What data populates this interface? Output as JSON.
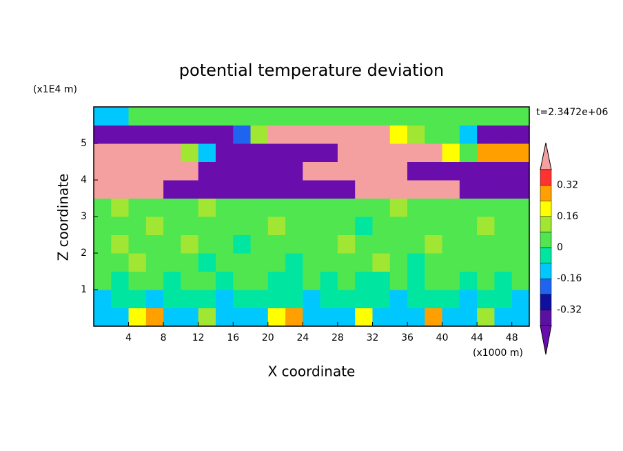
{
  "chart_data": {
    "type": "contour",
    "title": "potential temperature deviation",
    "x_label": "X coordinate",
    "y_label": "Z coordinate",
    "x_unit": "(x1000 m)",
    "y_unit": "(x1E4 m)",
    "annotation": "t=2.3472e+06",
    "xlim": [
      0,
      50
    ],
    "ylim": [
      0,
      6
    ],
    "xticks": [
      4,
      8,
      12,
      16,
      20,
      24,
      28,
      32,
      36,
      40,
      44,
      48
    ],
    "yticks": [
      1,
      2,
      3,
      4,
      5
    ],
    "x": [
      1,
      3,
      5,
      7,
      9,
      11,
      13,
      15,
      17,
      19,
      21,
      23,
      25,
      27,
      29,
      31,
      33,
      35,
      37,
      39,
      41,
      43,
      45,
      47,
      49
    ],
    "y": [
      0.25,
      0.75,
      1.25,
      1.75,
      2.25,
      2.75,
      3.25,
      3.75,
      4.25,
      4.75,
      5.25,
      5.75
    ],
    "z": [
      [
        -0.1,
        -0.1,
        0.2,
        0.3,
        -0.1,
        -0.1,
        0.1,
        -0.1,
        -0.1,
        -0.1,
        0.2,
        0.3,
        -0.1,
        -0.1,
        -0.1,
        0.2,
        -0.1,
        -0.1,
        -0.1,
        0.3,
        -0.1,
        -0.1,
        0.1,
        -0.1,
        -0.1
      ],
      [
        -0.1,
        -0.04,
        -0.04,
        -0.1,
        -0.04,
        -0.04,
        -0.04,
        -0.1,
        -0.04,
        -0.04,
        -0.04,
        -0.04,
        -0.1,
        -0.04,
        -0.04,
        -0.04,
        -0.04,
        -0.1,
        -0.04,
        -0.04,
        -0.04,
        -0.1,
        -0.04,
        -0.04,
        -0.1
      ],
      [
        0.04,
        -0.04,
        0.04,
        0.04,
        -0.04,
        0.04,
        0.04,
        -0.04,
        0.04,
        0.04,
        -0.04,
        -0.04,
        0.04,
        -0.04,
        0.04,
        -0.04,
        -0.04,
        0.04,
        -0.04,
        0.04,
        0.04,
        -0.04,
        0.04,
        -0.04,
        0.04
      ],
      [
        0.04,
        0.04,
        0.1,
        0.04,
        0.04,
        0.04,
        -0.04,
        0.04,
        0.04,
        0.04,
        0.04,
        -0.04,
        0.04,
        0.04,
        0.04,
        0.04,
        0.1,
        0.04,
        -0.04,
        0.04,
        0.04,
        0.04,
        0.04,
        0.04,
        0.04
      ],
      [
        0.04,
        0.1,
        0.04,
        0.04,
        0.04,
        0.1,
        0.04,
        0.04,
        -0.04,
        0.04,
        0.04,
        0.04,
        0.04,
        0.04,
        0.1,
        0.04,
        0.04,
        0.04,
        0.04,
        0.1,
        0.04,
        0.04,
        0.04,
        0.04,
        0.04
      ],
      [
        0.04,
        0.04,
        0.04,
        0.1,
        0.04,
        0.04,
        0.04,
        0.04,
        0.04,
        0.04,
        0.1,
        0.04,
        0.04,
        0.04,
        0.04,
        -0.04,
        0.04,
        0.04,
        0.04,
        0.04,
        0.04,
        0.04,
        0.1,
        0.04,
        0.04
      ],
      [
        0.04,
        0.1,
        0.04,
        0.04,
        0.04,
        0.04,
        0.1,
        0.04,
        0.04,
        0.04,
        0.04,
        0.04,
        0.04,
        0.04,
        0.04,
        0.04,
        0.04,
        0.1,
        0.04,
        0.04,
        0.04,
        0.04,
        0.04,
        0.04,
        0.04
      ],
      [
        0.45,
        0.45,
        0.45,
        0.45,
        -0.45,
        -0.45,
        -0.45,
        -0.45,
        -0.45,
        -0.45,
        -0.45,
        -0.45,
        -0.45,
        -0.45,
        -0.45,
        0.45,
        0.45,
        0.45,
        0.45,
        0.45,
        0.45,
        -0.45,
        -0.45,
        -0.45,
        -0.45
      ],
      [
        0.45,
        0.45,
        0.45,
        0.45,
        0.45,
        0.45,
        -0.45,
        -0.45,
        -0.45,
        -0.45,
        -0.45,
        -0.45,
        0.45,
        0.45,
        0.45,
        0.45,
        0.45,
        0.45,
        -0.45,
        -0.45,
        -0.45,
        -0.45,
        -0.45,
        -0.45,
        -0.45
      ],
      [
        0.45,
        0.45,
        0.45,
        0.45,
        0.45,
        0.1,
        -0.1,
        -0.45,
        -0.45,
        -0.45,
        -0.45,
        -0.45,
        -0.45,
        -0.45,
        0.45,
        0.45,
        0.45,
        0.45,
        0.45,
        0.45,
        0.2,
        0.04,
        0.3,
        0.3,
        0.3
      ],
      [
        -0.45,
        -0.45,
        -0.45,
        -0.45,
        -0.45,
        -0.45,
        -0.45,
        -0.45,
        -0.2,
        0.1,
        0.45,
        0.45,
        0.45,
        0.45,
        0.45,
        0.45,
        0.45,
        0.2,
        0.1,
        0.04,
        0.04,
        -0.1,
        -0.45,
        -0.45,
        -0.45
      ],
      [
        -0.1,
        -0.1,
        0.04,
        0.04,
        0.04,
        0.04,
        0.04,
        0.04,
        0.04,
        0.04,
        0.04,
        0.04,
        0.04,
        0.04,
        0.04,
        0.04,
        0.04,
        0.04,
        0.04,
        0.04,
        0.04,
        0.04,
        0.04,
        0.04,
        0.04
      ]
    ],
    "levels": [
      -0.4,
      -0.32,
      -0.24,
      -0.16,
      -0.08,
      0,
      0.08,
      0.16,
      0.24,
      0.32,
      0.4
    ],
    "colors": [
      "#6a0dad",
      "#5a10a0",
      "#1010a0",
      "#1e64f0",
      "#00c8ff",
      "#00e6a0",
      "#50e650",
      "#a0e632",
      "#ffff00",
      "#ffa000",
      "#ff3232",
      "#f5a0a0"
    ],
    "colorbar_ticks": [
      -0.32,
      -0.16,
      0,
      0.16,
      0.32
    ]
  }
}
